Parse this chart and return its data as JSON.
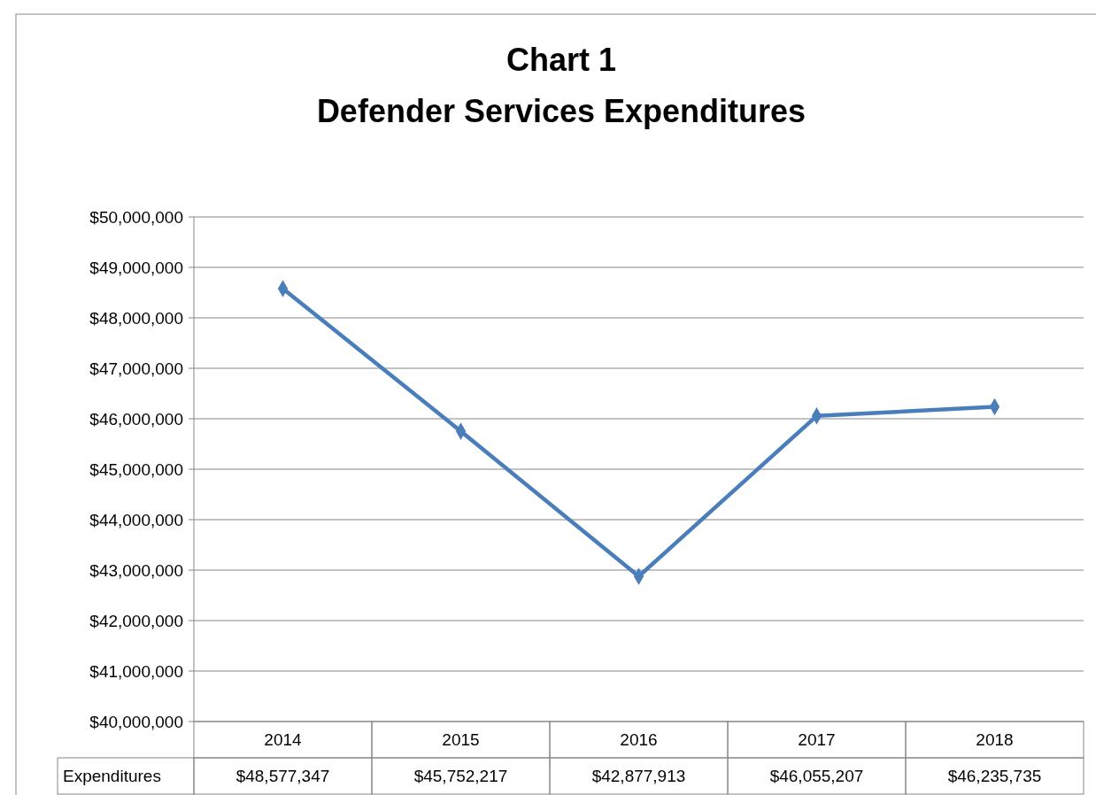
{
  "chart_data": {
    "type": "line",
    "title": "Chart 1",
    "subtitle": "Defender Services Expenditures",
    "categories": [
      "2014",
      "2015",
      "2016",
      "2017",
      "2018"
    ],
    "series": [
      {
        "name": "Expenditures",
        "color": "#4a7ebb",
        "values": [
          48577347,
          45752217,
          42877913,
          46055207,
          46235735
        ],
        "value_labels": [
          "$48,577,347",
          "$45,752,217",
          "$42,877,913",
          "$46,055,207",
          "$46,235,735"
        ]
      }
    ],
    "ylim": [
      40000000,
      50000000
    ],
    "yticks": [
      {
        "value": 40000000,
        "label": "$40,000,000"
      },
      {
        "value": 41000000,
        "label": "$41,000,000"
      },
      {
        "value": 42000000,
        "label": "$42,000,000"
      },
      {
        "value": 43000000,
        "label": "$43,000,000"
      },
      {
        "value": 44000000,
        "label": "$44,000,000"
      },
      {
        "value": 45000000,
        "label": "$45,000,000"
      },
      {
        "value": 46000000,
        "label": "$46,000,000"
      },
      {
        "value": 47000000,
        "label": "$47,000,000"
      },
      {
        "value": 48000000,
        "label": "$48,000,000"
      },
      {
        "value": 49000000,
        "label": "$49,000,000"
      },
      {
        "value": 50000000,
        "label": "$50,000,000"
      }
    ],
    "grid": "y",
    "marker": "diamond",
    "line_style": "solid"
  }
}
